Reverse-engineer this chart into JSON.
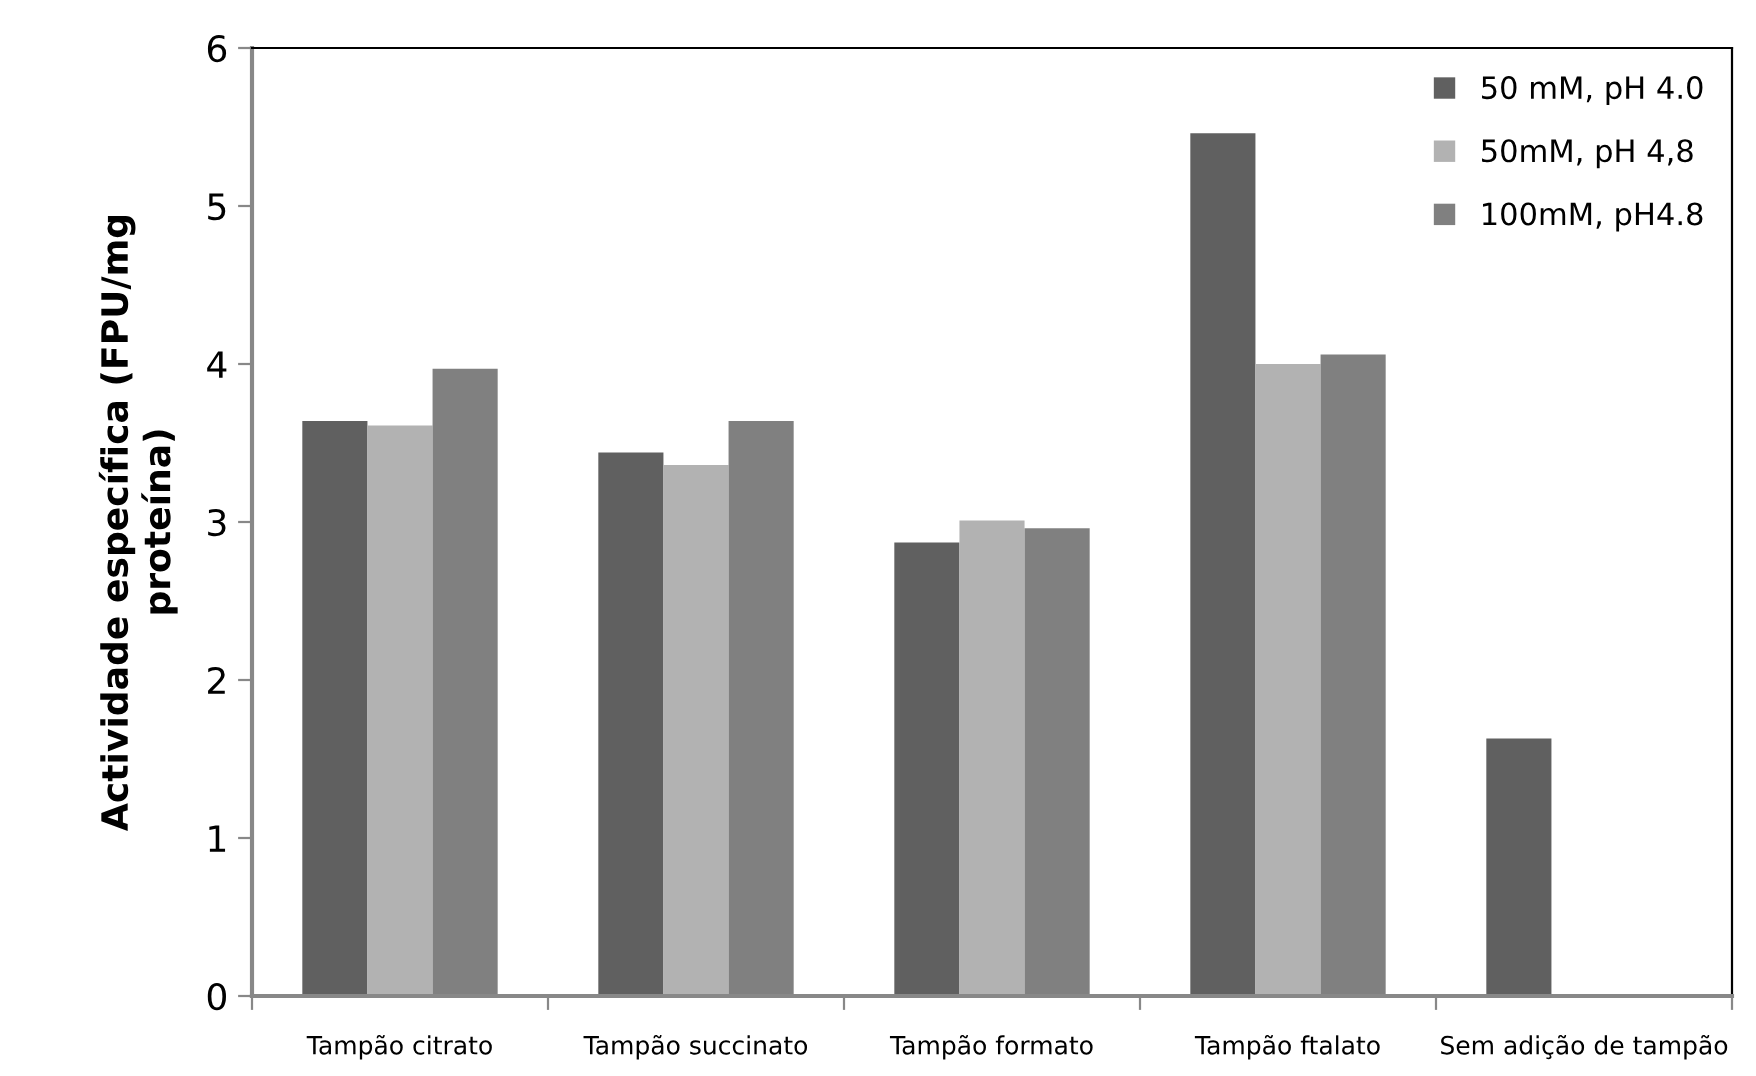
{
  "chart_data": {
    "type": "bar",
    "ylabel": "Actividade específica (FPU/mg\nproteína)",
    "categories": [
      "Tampão citrato",
      "Tampão succinato",
      "Tampão formato",
      "Tampão ftalato",
      "Sem adição de tampão"
    ],
    "series": [
      {
        "name": "50 mM, pH 4.0",
        "color": "#606060",
        "values": [
          3.64,
          3.44,
          2.87,
          5.46,
          1.63
        ]
      },
      {
        "name": "50mM, pH 4,8",
        "color": "#b2b2b2",
        "values": [
          3.61,
          3.36,
          3.01,
          4.0,
          null
        ]
      },
      {
        "name": "100mM, pH4.8",
        "color": "#808080",
        "values": [
          3.97,
          3.64,
          2.96,
          4.06,
          null
        ]
      }
    ],
    "ylim": [
      0,
      6
    ],
    "yticks": [
      0,
      1,
      2,
      3,
      4,
      5,
      6
    ],
    "grid": false,
    "legend": "top right"
  }
}
